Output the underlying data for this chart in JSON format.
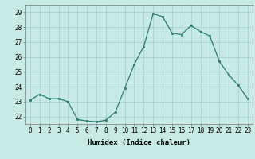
{
  "x": [
    0,
    1,
    2,
    3,
    4,
    5,
    6,
    7,
    8,
    9,
    10,
    11,
    12,
    13,
    14,
    15,
    16,
    17,
    18,
    19,
    20,
    21,
    22,
    23
  ],
  "y": [
    23.1,
    23.5,
    23.2,
    23.2,
    23.0,
    21.8,
    21.7,
    21.65,
    21.75,
    22.3,
    23.9,
    25.5,
    26.7,
    28.9,
    28.7,
    27.6,
    27.5,
    28.1,
    27.7,
    27.4,
    25.7,
    24.8,
    24.1,
    23.2
  ],
  "line_color": "#2d7d6e",
  "marker_color": "#2d7d6e",
  "bg_color": "#c8eae4",
  "grid_color": "#9dcfca",
  "xlabel": "Humidex (Indice chaleur)",
  "xlabel_fontsize": 6.5,
  "tick_fontsize": 5.5,
  "ylim": [
    21.5,
    29.5
  ],
  "yticks": [
    22,
    23,
    24,
    25,
    26,
    27,
    28,
    29
  ],
  "xticks": [
    0,
    1,
    2,
    3,
    4,
    5,
    6,
    7,
    8,
    9,
    10,
    11,
    12,
    13,
    14,
    15,
    16,
    17,
    18,
    19,
    20,
    21,
    22,
    23
  ]
}
